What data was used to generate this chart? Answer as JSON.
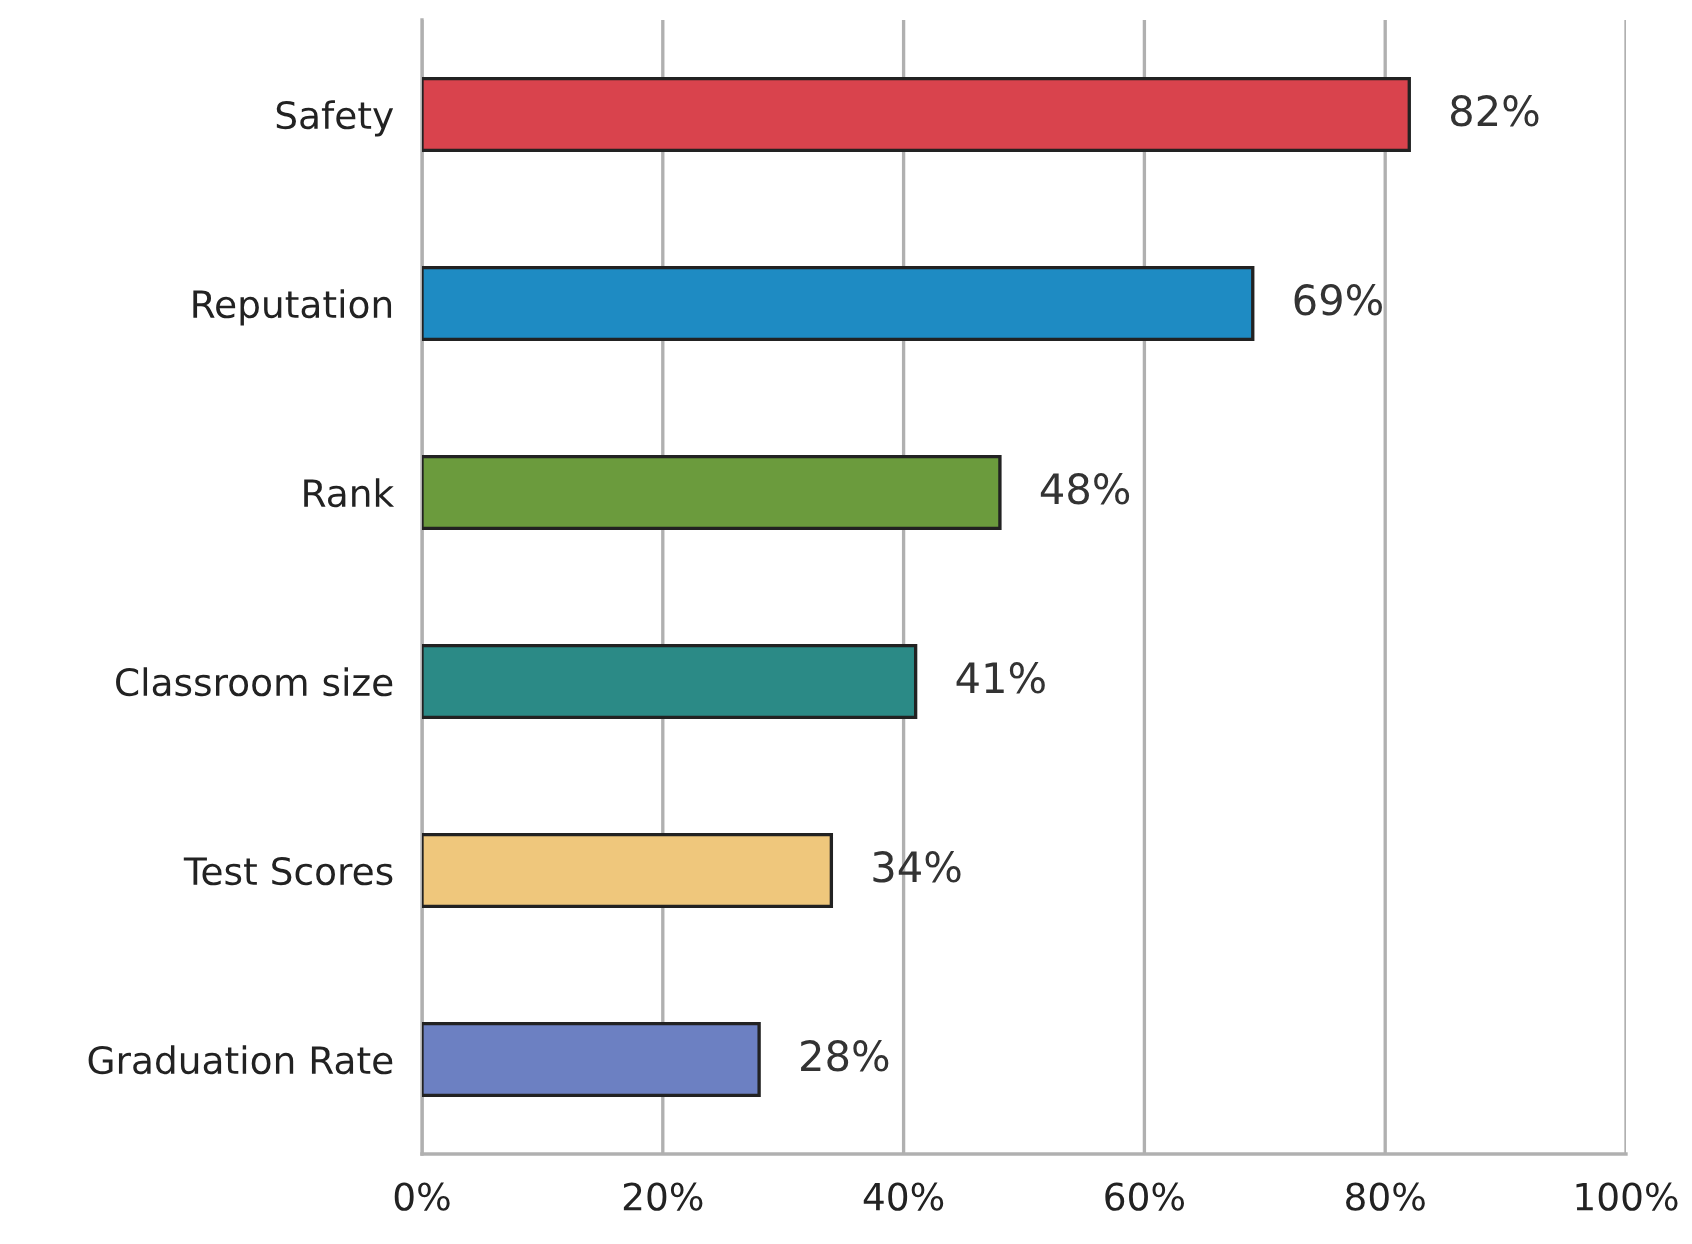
{
  "chart_data": {
    "type": "bar",
    "orientation": "horizontal",
    "categories": [
      "Safety",
      "Reputation",
      "Rank",
      "Classroom size",
      "Test Scores",
      "Graduation Rate"
    ],
    "values": [
      82,
      69,
      48,
      41,
      34,
      28
    ],
    "colors": [
      "#d9434d",
      "#1e8bc3",
      "#6b9b3d",
      "#2b8a86",
      "#efc77c",
      "#6c80c2"
    ],
    "value_labels": [
      "82%",
      "69%",
      "48%",
      "41%",
      "34%",
      "28%"
    ],
    "xlim": [
      0,
      100
    ],
    "xticks": [
      {
        "value": 0,
        "label": "0%"
      },
      {
        "value": 20,
        "label": "20%"
      },
      {
        "value": 40,
        "label": "40%"
      },
      {
        "value": 60,
        "label": "60%"
      },
      {
        "value": 80,
        "label": "80%"
      },
      {
        "value": 100,
        "label": "100%"
      }
    ],
    "grid": "x",
    "legend": false
  }
}
